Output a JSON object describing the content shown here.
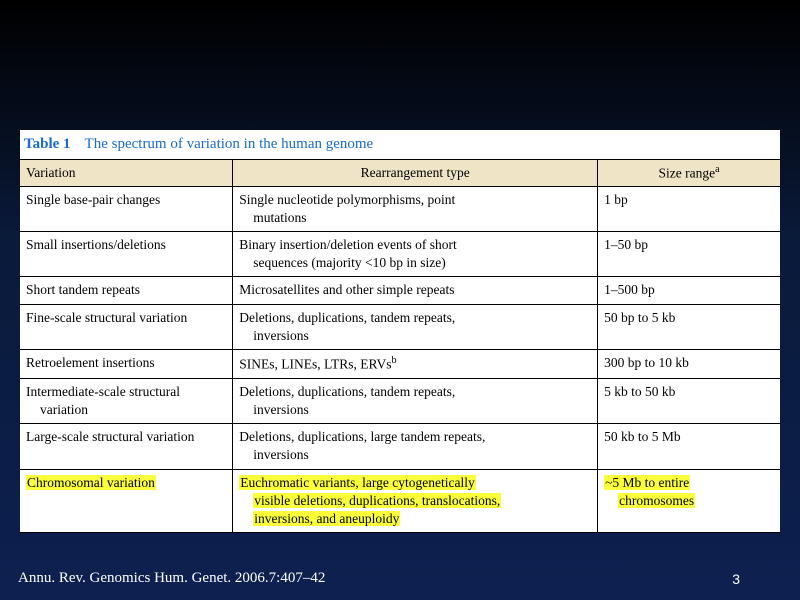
{
  "slide": {
    "background_top": "#000000",
    "background_bottom": "#0d2050"
  },
  "table": {
    "title_label": "Table 1",
    "title_text": "The spectrum of variation in the human genome",
    "title_color": "#1a6bc4",
    "header_bg": "#efe5c6",
    "highlight_color": "#faff3a",
    "columns": {
      "c0": "Variation",
      "c1": "Rearrangement type",
      "c2_html": "Size range<sup>a</sup>"
    },
    "rows": [
      {
        "c0": "Single base-pair changes",
        "c1_line1": "Single nucleotide polymorphisms, point",
        "c1_line2": "mutations",
        "c2": "1 bp"
      },
      {
        "c0": "Small insertions/deletions",
        "c1_line1": "Binary insertion/deletion events of short",
        "c1_line2": "sequences (majority <10 bp in size)",
        "c2": "1–50 bp"
      },
      {
        "c0": "Short tandem repeats",
        "c1_line1": "Microsatellites and other simple repeats",
        "c2": "1–500 bp"
      },
      {
        "c0": "Fine-scale structural variation",
        "c1_line1": "Deletions, duplications, tandem repeats,",
        "c1_line2": "inversions",
        "c2": "50 bp to 5 kb"
      },
      {
        "c0": "Retroelement insertions",
        "c1_html": "SINEs, LINEs, LTRs, ERVs<sup>b</sup>",
        "c2": "300 bp to 10 kb"
      },
      {
        "c0_line1": "Intermediate-scale structural",
        "c0_line2": "variation",
        "c1_line1": "Deletions, duplications, tandem repeats,",
        "c1_line2": "inversions",
        "c2": "5 kb to 50 kb"
      },
      {
        "c0": "Large-scale structural variation",
        "c1_line1": "Deletions, duplications, large tandem repeats,",
        "c1_line2": "inversions",
        "c2": "50 kb to 5 Mb"
      },
      {
        "highlight": true,
        "c0": "Chromosomal variation",
        "c1_line1": "Euchromatic variants, large cytogenetically",
        "c1_line2": "visible deletions, duplications, translocations,",
        "c1_line3": "inversions, and aneuploidy",
        "c2_line1": "~5 Mb to entire",
        "c2_line2": "chromosomes"
      }
    ]
  },
  "citation": "Annu. Rev. Genomics Hum. Genet. 2006.7:407–42",
  "page_number": "3"
}
